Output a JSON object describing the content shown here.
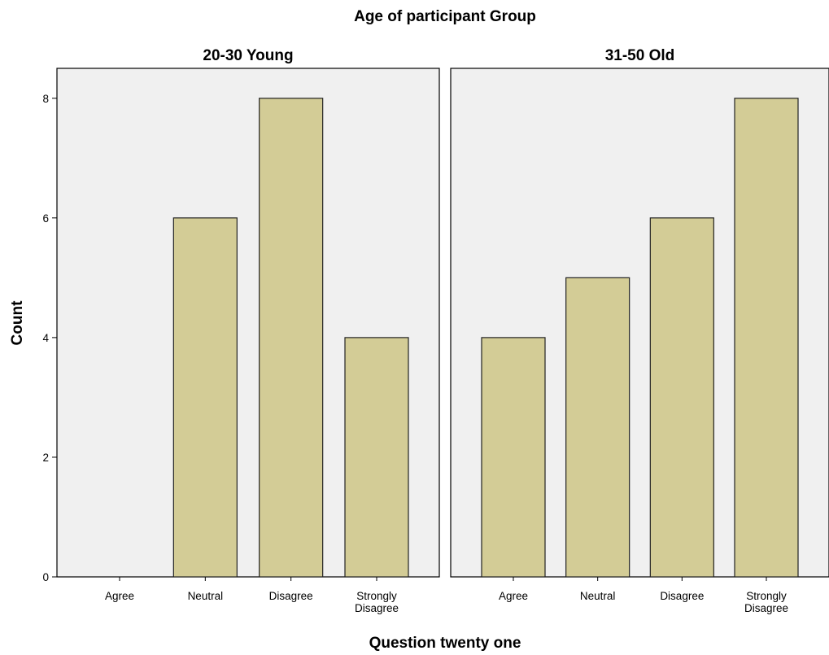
{
  "chart_data": {
    "type": "bar",
    "title": "Age of participant Group",
    "xlabel": "Question twenty one",
    "ylabel": "Count",
    "ylim": [
      0,
      8.5
    ],
    "yticks": [
      0,
      2,
      4,
      6,
      8
    ],
    "grid": false,
    "bar_color": "#d3cc96",
    "panel_bg_color": "#f0f0f0",
    "categories": [
      "Agree",
      "Neutral",
      "Disagree",
      "Strongly Disagree"
    ],
    "category_label_lines": [
      [
        "Agree"
      ],
      [
        "Neutral"
      ],
      [
        "Disagree"
      ],
      [
        "Strongly",
        "Disagree"
      ]
    ],
    "panels": [
      {
        "name": "20-30 Young",
        "values": [
          0,
          6,
          8,
          4
        ]
      },
      {
        "name": "31-50 Old",
        "values": [
          4,
          5,
          6,
          8
        ]
      }
    ]
  }
}
